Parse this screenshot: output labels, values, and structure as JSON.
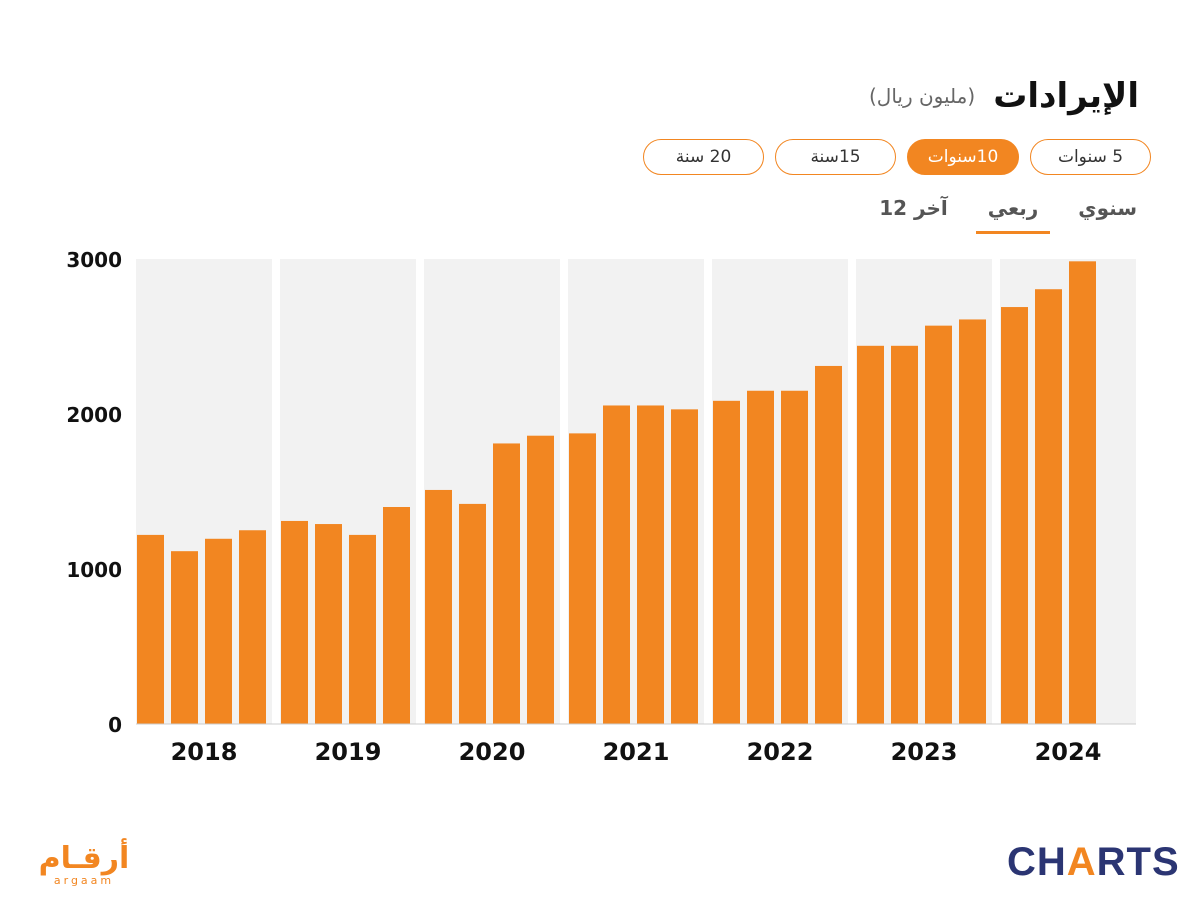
{
  "header": {
    "title": "الإيرادات",
    "unit": "(مليون ريال)"
  },
  "range_tabs": [
    {
      "label": "5 سنوات",
      "active": false
    },
    {
      "label": "10سنوات",
      "active": true
    },
    {
      "label": "15سنة",
      "active": false
    },
    {
      "label": "20 سنة",
      "active": false
    }
  ],
  "period_tabs": [
    {
      "label": "سنوي",
      "active": false
    },
    {
      "label": "ربعي",
      "active": true
    },
    {
      "label": "آخر 12",
      "active": false
    }
  ],
  "colors": {
    "bar": "#f28621",
    "band": "#f2f2f2",
    "text": "#111111"
  },
  "chart_data": {
    "type": "bar",
    "grouping": "quarterly bars grouped by year",
    "ylim": [
      0,
      3000
    ],
    "yticks": [
      "0",
      "1000",
      "2000",
      "3000"
    ],
    "groups": [
      {
        "year": "2018",
        "values": [
          1220,
          1115,
          1195,
          1250
        ]
      },
      {
        "year": "2019",
        "values": [
          1310,
          1290,
          1220,
          1400
        ]
      },
      {
        "year": "2020",
        "values": [
          1510,
          1420,
          1810,
          1860
        ]
      },
      {
        "year": "2021",
        "values": [
          1875,
          2055,
          2055,
          2030
        ]
      },
      {
        "year": "2022",
        "values": [
          2085,
          2150,
          2150,
          2310
        ]
      },
      {
        "year": "2023",
        "values": [
          2440,
          2440,
          2570,
          2610
        ]
      },
      {
        "year": "2024",
        "values": [
          2690,
          2805,
          2985
        ]
      }
    ]
  },
  "logos": {
    "argaam_ar": "أرقـام",
    "argaam_en": "argaam",
    "charts_left": "CH",
    "charts_slash": "A",
    "charts_right": "RTS"
  }
}
